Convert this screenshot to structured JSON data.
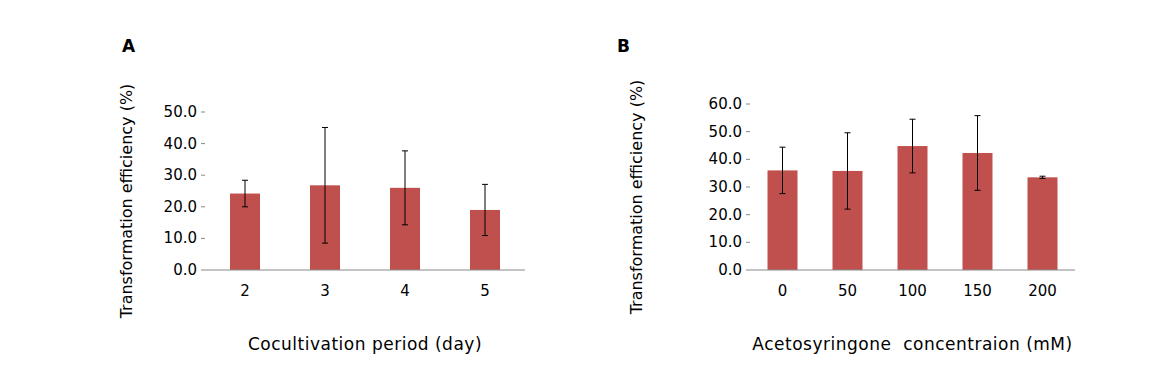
{
  "chart_data": [
    {
      "type": "bar",
      "title": "A",
      "x_label": "Cocultivation period (day)",
      "y_label": "Transformation efficiency (%)",
      "categories": [
        "2",
        "3",
        "4",
        "5"
      ],
      "values": [
        24.2,
        26.8,
        26.0,
        19.0
      ],
      "errors": [
        4.2,
        18.3,
        11.7,
        8.1
      ],
      "color": "#c0504d",
      "ylim": [
        0,
        50
      ],
      "yticks": [
        {
          "value": 0,
          "label": "0.0"
        },
        {
          "value": 10,
          "label": "10.0"
        },
        {
          "value": 20,
          "label": "20.0"
        },
        {
          "value": 30,
          "label": "30.0"
        },
        {
          "value": 40,
          "label": "40.0"
        },
        {
          "value": 50,
          "label": "50.0"
        }
      ],
      "grid": false
    },
    {
      "type": "bar",
      "title": "B",
      "x_label": "Acetosyringone  concentraion (mM)",
      "y_label": "Transformation efficiency (%)",
      "categories": [
        "0",
        "50",
        "100",
        "150",
        "200"
      ],
      "values": [
        36.0,
        35.8,
        44.8,
        42.3,
        33.5
      ],
      "errors": [
        8.4,
        13.8,
        9.7,
        13.5,
        0.4
      ],
      "color": "#c0504d",
      "ylim": [
        0,
        60
      ],
      "yticks": [
        {
          "value": 0,
          "label": "0.0"
        },
        {
          "value": 10,
          "label": "10.0"
        },
        {
          "value": 20,
          "label": "20.0"
        },
        {
          "value": 30,
          "label": "30.0"
        },
        {
          "value": 40,
          "label": "40.0"
        },
        {
          "value": 50,
          "label": "50.0"
        },
        {
          "value": 60,
          "label": "60.0"
        }
      ],
      "grid": false
    }
  ]
}
